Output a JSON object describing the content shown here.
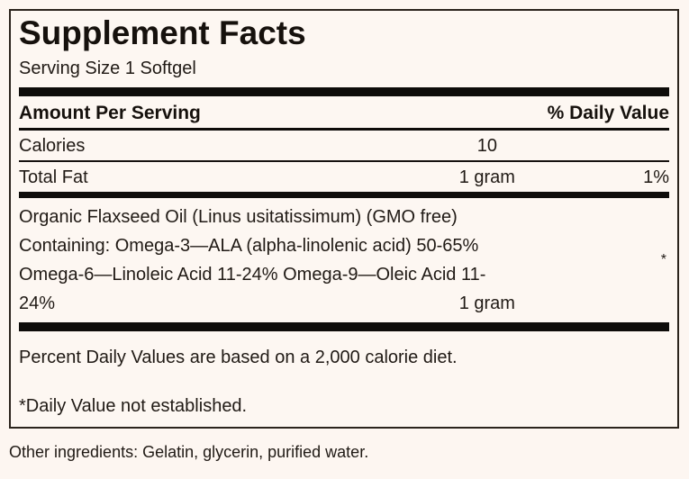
{
  "colors": {
    "background": "#fdf6f1",
    "text": "#201a15",
    "bar": "#0e0c0a"
  },
  "label": {
    "title": "Supplement Facts",
    "serving_size": "Serving Size 1 Softgel",
    "columns": {
      "amount_header": "Amount Per Serving",
      "daily_value_header": "% Daily Value"
    },
    "rows": [
      {
        "name": "Calories",
        "amount": "10",
        "daily_value": ""
      },
      {
        "name": "Total Fat",
        "amount": "1 gram",
        "daily_value": "1%"
      }
    ],
    "ingredient": {
      "line1": "Organic Flaxseed Oil (Linus usitatissimum) (GMO free)",
      "line2": "Containing: Omega-3—ALA (alpha-linolenic acid) 50-65%",
      "line3": "Omega-6—Linoleic Acid 11-24% Omega-9—Oleic Acid 11-",
      "line4": "24%",
      "amount": "1 gram",
      "daily_value_mark": "*"
    },
    "footnotes": {
      "daily_values": "Percent Daily Values are based on a 2,000 calorie diet.",
      "not_established": "*Daily Value not established."
    }
  },
  "other_ingredients": "Other ingredients: Gelatin, glycerin, purified water."
}
